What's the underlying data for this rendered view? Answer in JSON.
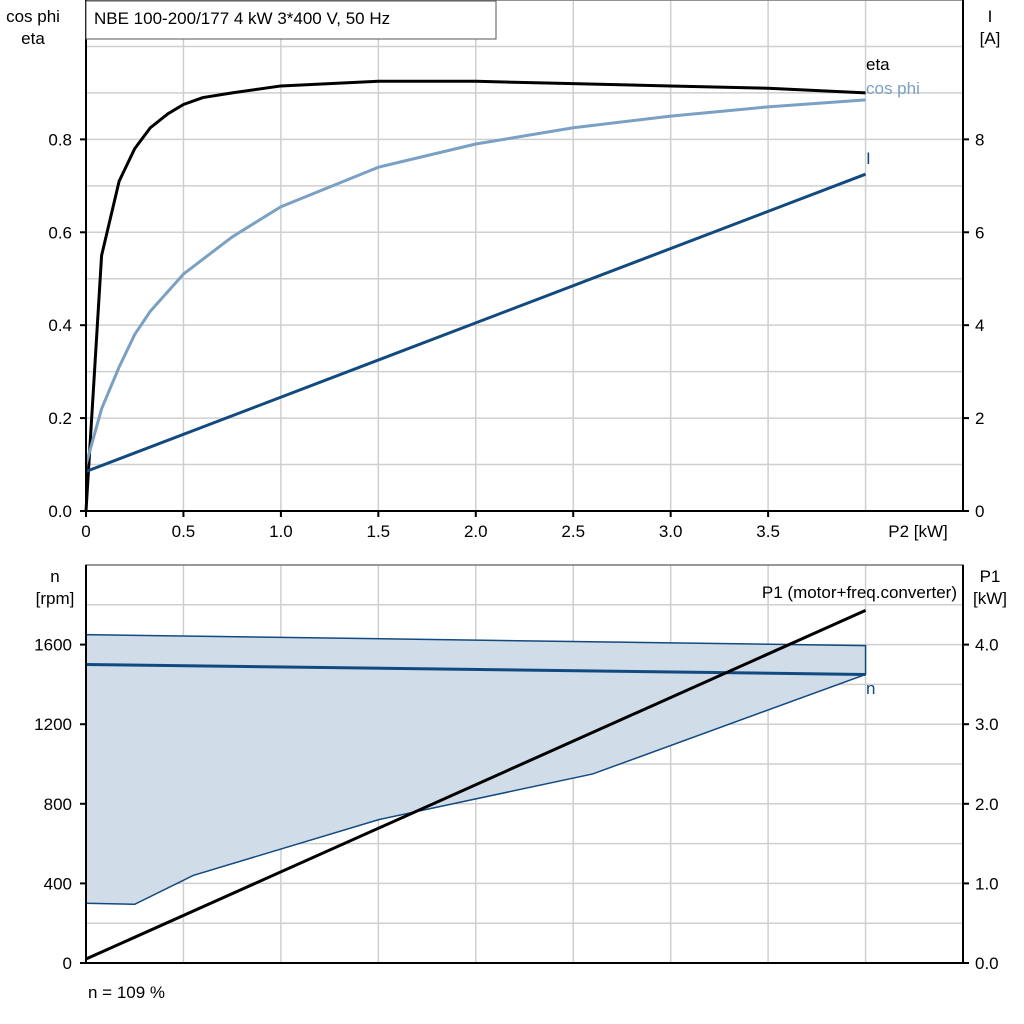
{
  "chart_data": [
    {
      "type": "line",
      "title": "NBE 100-200/177   4 kW   3*400 V, 50 Hz",
      "xlabel": "P2 [kW]",
      "ylabel_lines": [
        "cos phi",
        "eta"
      ],
      "y2label_lines": [
        "I",
        "[A]"
      ],
      "xlim": [
        0,
        4.5
      ],
      "ylim": [
        0,
        1.1
      ],
      "y2lim": [
        0,
        11
      ],
      "xticks": [
        0,
        0.5,
        1.0,
        1.5,
        2.0,
        2.5,
        3.0,
        3.5
      ],
      "xtick_labels": [
        "0",
        "0.5",
        "1.0",
        "1.5",
        "2.0",
        "2.5",
        "3.0",
        "3.5"
      ],
      "yticks": [
        0,
        0.2,
        0.4,
        0.6,
        0.8
      ],
      "ytick_labels": [
        "0.0",
        "0.2",
        "0.4",
        "0.6",
        "0.8"
      ],
      "y2ticks": [
        0,
        2,
        4,
        6,
        8
      ],
      "y2tick_labels": [
        "0",
        "2",
        "4",
        "6",
        "8"
      ],
      "grid": true,
      "series": [
        {
          "name": "eta",
          "axis": "left",
          "color": "#000000",
          "x": [
            0,
            0.08,
            0.17,
            0.25,
            0.33,
            0.42,
            0.5,
            0.6,
            0.75,
            1.0,
            1.5,
            2.0,
            2.5,
            3.0,
            3.5,
            4.0
          ],
          "y": [
            0,
            0.55,
            0.71,
            0.78,
            0.825,
            0.855,
            0.875,
            0.89,
            0.9,
            0.915,
            0.925,
            0.925,
            0.92,
            0.915,
            0.91,
            0.9
          ]
        },
        {
          "name": "cos phi",
          "axis": "left",
          "color": "#7aa0c4",
          "x": [
            0,
            0.08,
            0.17,
            0.25,
            0.33,
            0.5,
            0.75,
            1.0,
            1.5,
            2.0,
            2.5,
            3.0,
            3.5,
            4.0
          ],
          "y": [
            0.1,
            0.22,
            0.31,
            0.38,
            0.43,
            0.51,
            0.59,
            0.655,
            0.74,
            0.79,
            0.825,
            0.85,
            0.87,
            0.885
          ]
        },
        {
          "name": "I",
          "axis": "right",
          "color": "#124a80",
          "x": [
            0,
            4.0
          ],
          "y": [
            0.85,
            7.25
          ]
        }
      ]
    },
    {
      "type": "line",
      "xlim": [
        0,
        4.5
      ],
      "ylim": [
        0,
        2000
      ],
      "y2lim": [
        0,
        5.0
      ],
      "ylabel_lines": [
        "n",
        "[rpm]"
      ],
      "y2label_lines": [
        "P1",
        "[kW]"
      ],
      "yticks": [
        0,
        400,
        800,
        1200,
        1600
      ],
      "ytick_labels": [
        "0",
        "400",
        "800",
        "1200",
        "1600"
      ],
      "y2ticks": [
        0,
        1,
        2,
        3,
        4
      ],
      "y2tick_labels": [
        "0.0",
        "1.0",
        "2.0",
        "3.0",
        "4.0"
      ],
      "grid": true,
      "annotation": "P1 (motor+freq.converter)",
      "footer": "n = 109 %",
      "band": {
        "name": "n range",
        "color": "#d0dce8",
        "upper": {
          "x": [
            0,
            4.0
          ],
          "y": [
            1650,
            1595
          ]
        },
        "lower": {
          "x": [
            0,
            0.25,
            0.55,
            1.5,
            2.6,
            4.0
          ],
          "y": [
            300,
            295,
            440,
            720,
            950,
            1450
          ]
        }
      },
      "series": [
        {
          "name": "n",
          "axis": "left",
          "color": "#124a80",
          "x": [
            0,
            4.0
          ],
          "y": [
            1500,
            1450
          ]
        },
        {
          "name": "P1",
          "axis": "right",
          "color": "#000000",
          "x": [
            0,
            4.0
          ],
          "y": [
            0.05,
            4.43
          ]
        }
      ]
    }
  ]
}
